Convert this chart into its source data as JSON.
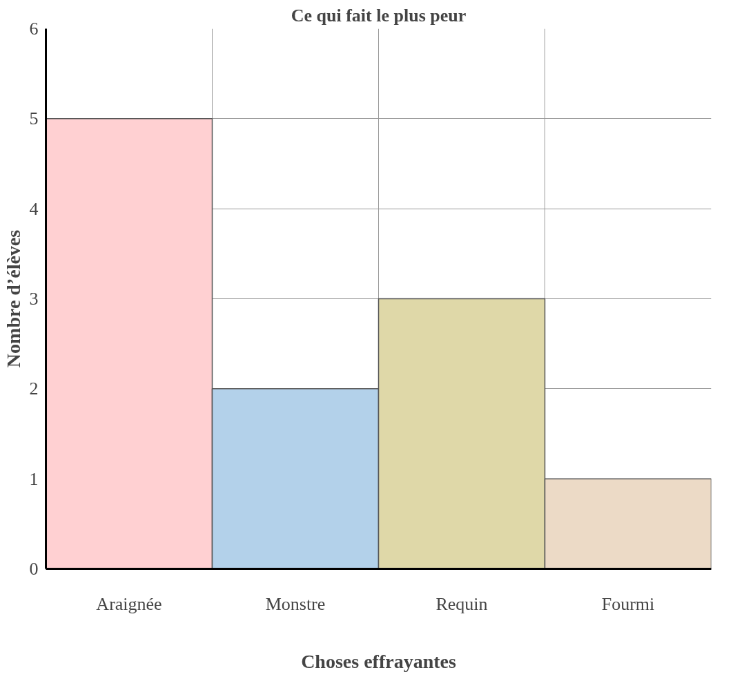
{
  "chart_data": {
    "type": "bar",
    "title": "Ce qui fait le plus peur",
    "xlabel": "Choses effrayantes",
    "ylabel": "Nombre d’élèves",
    "categories": [
      "Araignée",
      "Monstre",
      "Requin",
      "Fourmi"
    ],
    "values": [
      5,
      2,
      3,
      1
    ],
    "colors": [
      "#ffd0d2",
      "#b3d1ea",
      "#dfd8a8",
      "#ecdac6"
    ],
    "ylim": [
      0,
      6
    ],
    "yticks": [
      0,
      1,
      2,
      3,
      4,
      5,
      6
    ],
    "grid": true
  }
}
